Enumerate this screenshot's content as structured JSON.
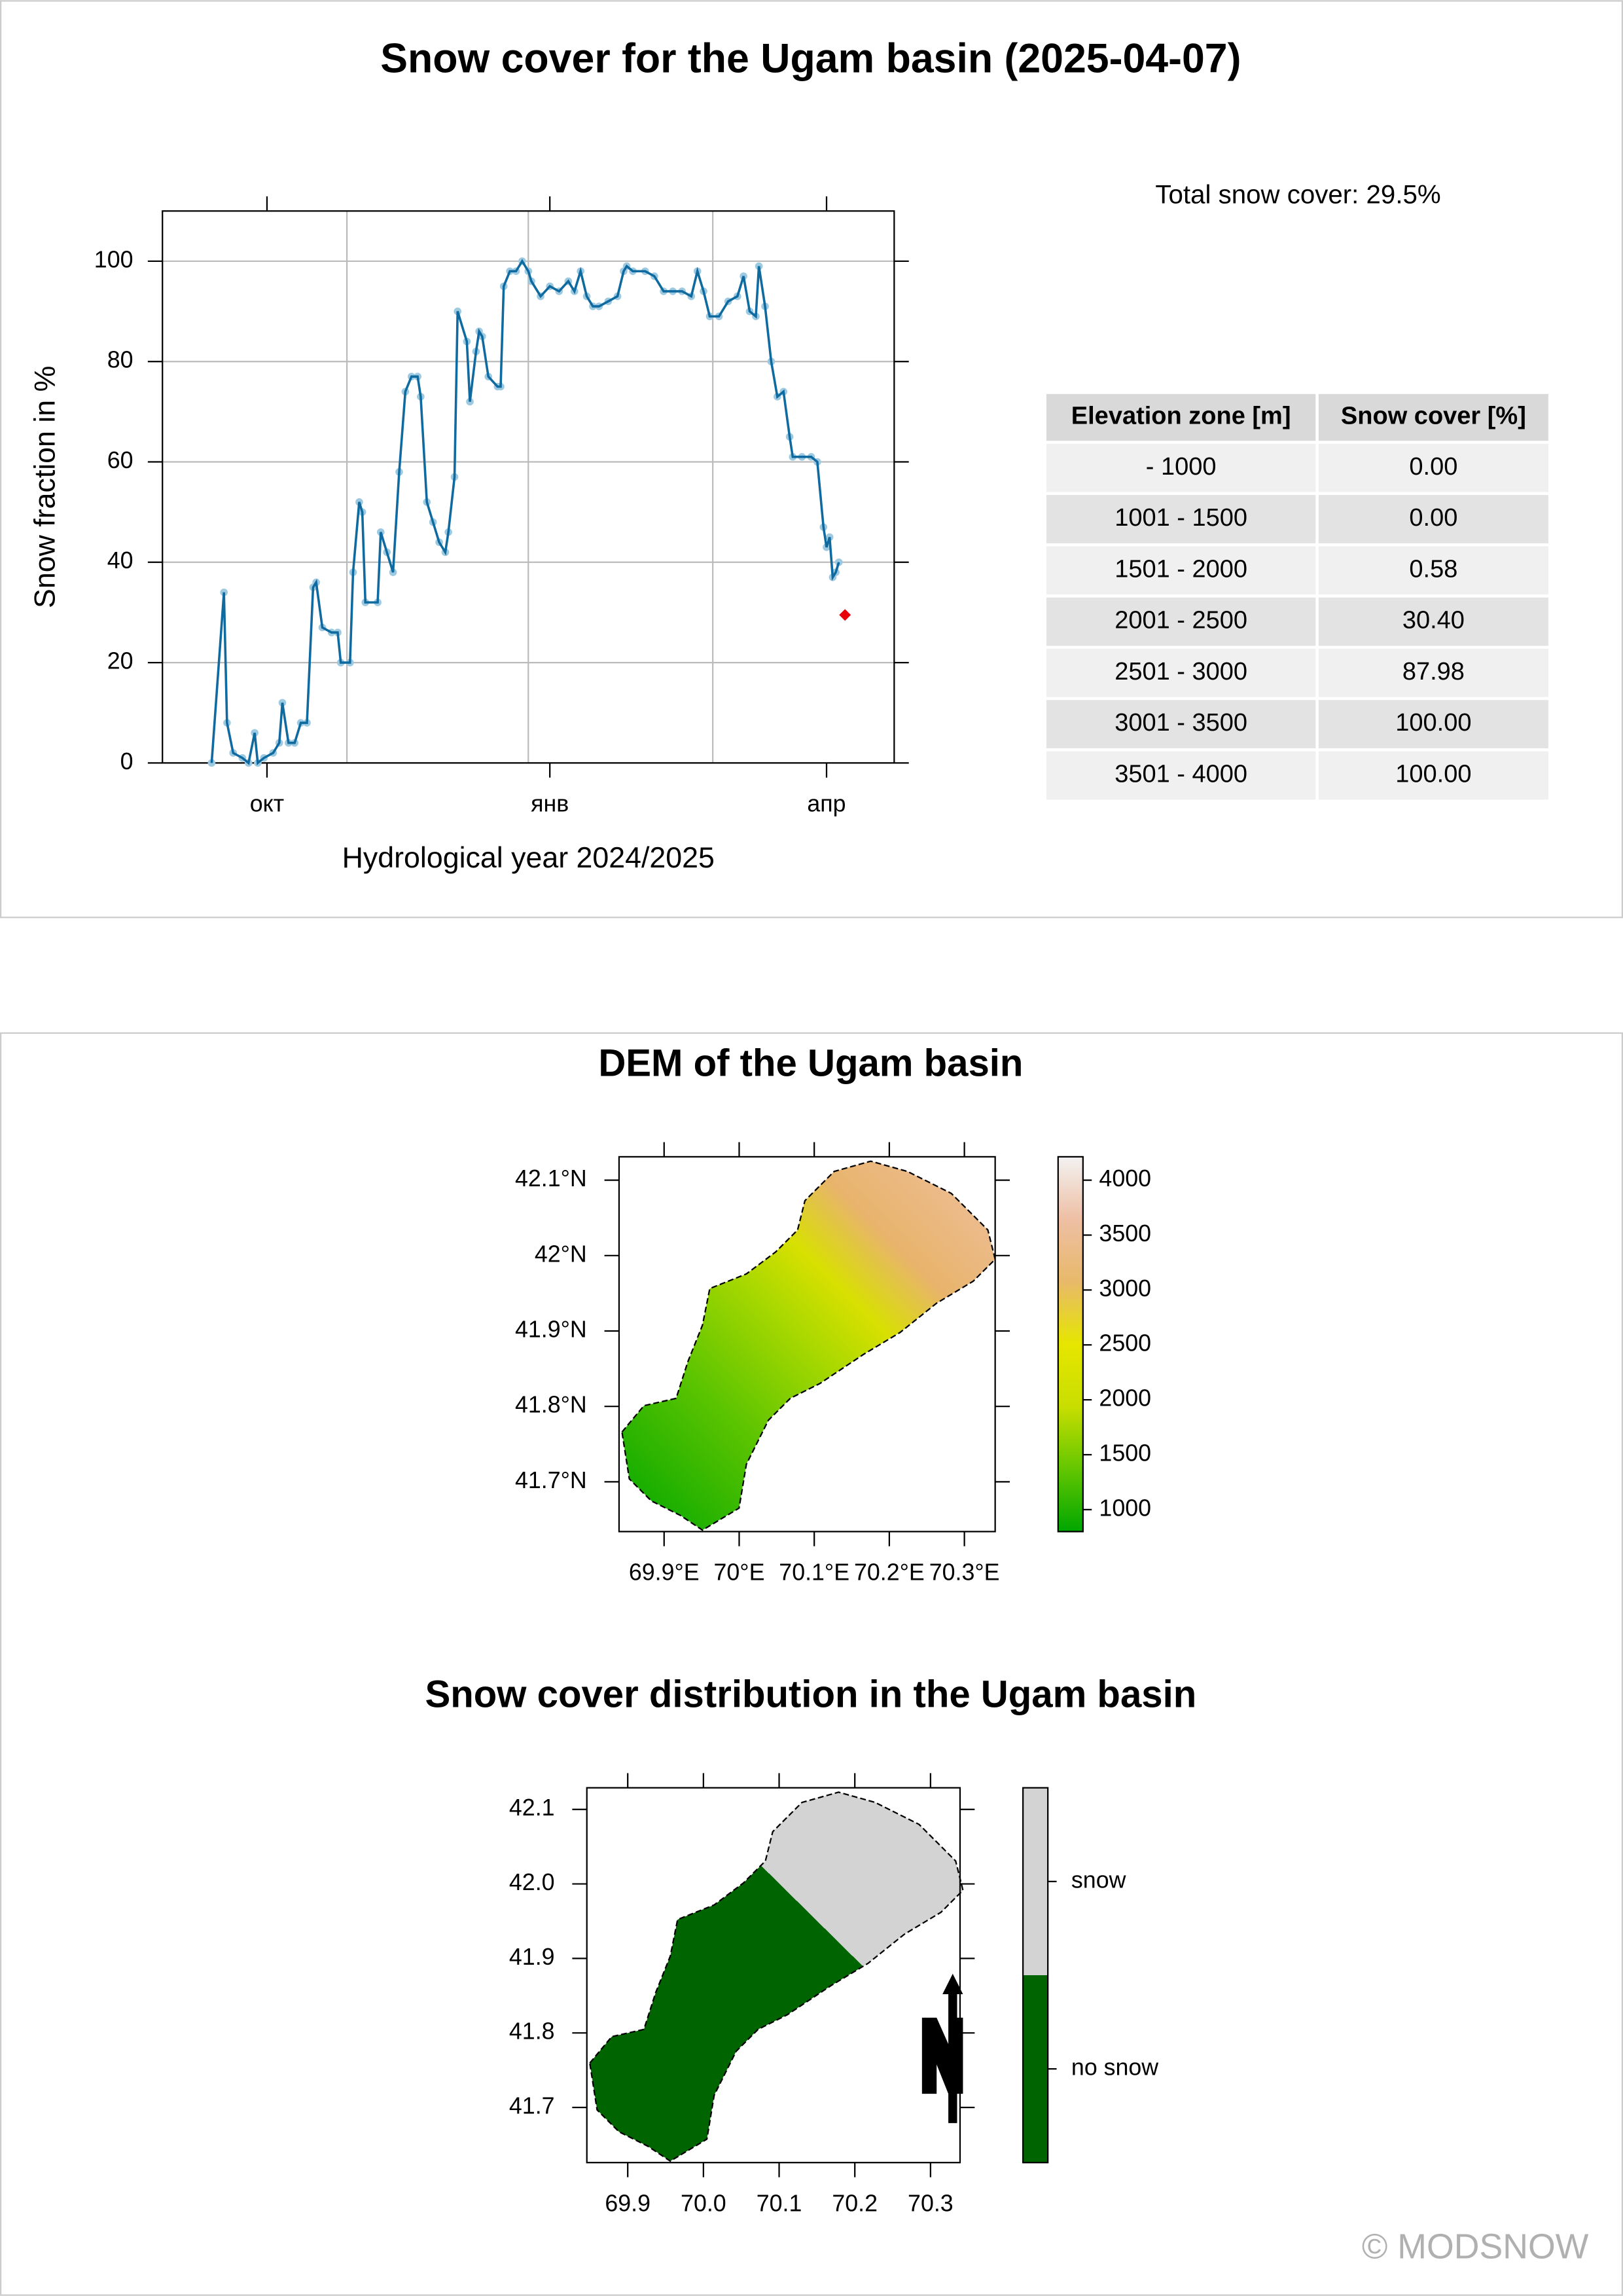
{
  "title": "Snow cover for the Ugam basin (2025-04-07)",
  "total_snow_cover": "Total snow cover: 29.5%",
  "chart_data": [
    {
      "type": "line",
      "xlabel": "Hydrological year 2024/2025",
      "ylabel": "Snow fraction in %",
      "xlim": [
        -4,
        234
      ],
      "ylim": [
        0,
        110
      ],
      "xticks": [
        {
          "value": 30,
          "label": "окт"
        },
        {
          "value": 122,
          "label": "янв"
        },
        {
          "value": 212,
          "label": "апр"
        }
      ],
      "xgrid": [
        56,
        115,
        175
      ],
      "yticks": [
        0,
        20,
        40,
        60,
        80,
        100
      ],
      "grid": true,
      "series": [
        {
          "color": "#0f6aa0",
          "marker_color": "#9ecae1",
          "marker": "circle",
          "x": [
            12,
            16,
            17,
            19,
            22,
            24,
            26,
            27,
            29,
            32,
            34,
            35,
            37,
            39,
            41,
            43,
            45,
            46,
            48,
            51,
            53,
            54,
            57,
            58,
            60,
            61,
            62,
            66,
            67,
            69,
            71,
            73,
            75,
            77,
            79,
            80,
            82,
            84,
            86,
            88,
            89,
            91,
            92,
            95,
            96,
            98,
            99,
            100,
            102,
            105,
            106,
            107,
            109,
            111,
            113,
            115,
            116,
            119,
            122,
            125,
            128,
            130,
            132,
            134,
            136,
            138,
            141,
            144,
            146,
            147,
            149,
            153,
            156,
            159,
            162,
            165,
            168,
            170,
            172,
            174,
            177,
            180,
            183,
            185,
            187,
            189,
            190,
            192,
            194,
            196,
            198,
            200,
            201,
            204,
            207,
            209,
            211,
            212,
            213,
            214,
            215,
            216
          ],
          "values": [
            0,
            34,
            8,
            2,
            1,
            0,
            6,
            0,
            1,
            2,
            4,
            12,
            4,
            4,
            8,
            8,
            35,
            36,
            27,
            26,
            26,
            20,
            20,
            38,
            52,
            50,
            32,
            32,
            46,
            42,
            38,
            58,
            74,
            77,
            77,
            73,
            52,
            48,
            44,
            42,
            46,
            57,
            90,
            84,
            72,
            82,
            86,
            85,
            77,
            75,
            75,
            95,
            98,
            98,
            100,
            98,
            96,
            93,
            95,
            94,
            96,
            94,
            98,
            93,
            91,
            91,
            92,
            93,
            98,
            99,
            98,
            98,
            97,
            94,
            94,
            94,
            93,
            98,
            94,
            89,
            89,
            92,
            93,
            97,
            90,
            89,
            99,
            91,
            80,
            73,
            74,
            65,
            61,
            61,
            61,
            60,
            47,
            43,
            45,
            37,
            38,
            40
          ]
        },
        {
          "color": "#e8000b",
          "marker": "diamond",
          "x": [
            218
          ],
          "values": [
            29.5
          ]
        }
      ]
    },
    {
      "type": "map",
      "title": "DEM of the Ugam basin",
      "xlim": [
        69.84,
        70.341
      ],
      "ylim": [
        41.634,
        42.131
      ],
      "xticks": [
        {
          "value": 69.9,
          "label": "69.9°E"
        },
        {
          "value": 70,
          "label": "70°E"
        },
        {
          "value": 70.1,
          "label": "70.1°E"
        },
        {
          "value": 70.2,
          "label": "70.2°E"
        },
        {
          "value": 70.3,
          "label": "70.3°E"
        }
      ],
      "yticks": [
        {
          "value": 41.7,
          "label": "41.7°N"
        },
        {
          "value": 41.8,
          "label": "41.8°N"
        },
        {
          "value": 41.9,
          "label": "41.9°N"
        },
        {
          "value": 42,
          "label": "42°N"
        },
        {
          "value": 42.1,
          "label": "42.1°N"
        }
      ],
      "colorbar": {
        "lim": [
          800,
          4213
        ],
        "ticks": [
          1000,
          1500,
          2000,
          2500,
          3000,
          3500,
          4000
        ],
        "colors": [
          "#00a600",
          "#63c600",
          "#c8de00",
          "#e6e600",
          "#e8b96a",
          "#eebfa4",
          "#f2f2f2"
        ]
      }
    },
    {
      "type": "map",
      "title": "Snow cover distribution in the Ugam basin",
      "xlim": [
        69.846,
        70.339
      ],
      "ylim": [
        41.626,
        42.129
      ],
      "xticks": [
        69.9,
        {
          "value": 70,
          "label": "70.0"
        },
        70.1,
        70.2,
        70.3
      ],
      "yticks": [
        41.7,
        41.8,
        41.9,
        {
          "value": 42,
          "label": "42.0"
        },
        42.1
      ],
      "legend": {
        "labels": [
          "no snow",
          "snow"
        ],
        "colors": [
          "#006400",
          "#d3d3d3"
        ]
      }
    }
  ],
  "table": {
    "columns": [
      "Elevation zone [m]",
      "Snow cover [%]"
    ],
    "rows": [
      [
        "- 1000",
        "0.00"
      ],
      [
        "1001 - 1500",
        "0.00"
      ],
      [
        "1501 - 2000",
        "0.58"
      ],
      [
        "2001 - 2500",
        "30.40"
      ],
      [
        "2501 - 3000",
        "87.98"
      ],
      [
        "3001 - 3500",
        "100.00"
      ],
      [
        "3501 - 4000",
        "100.00"
      ]
    ]
  },
  "copyright": "© MODSNOW"
}
